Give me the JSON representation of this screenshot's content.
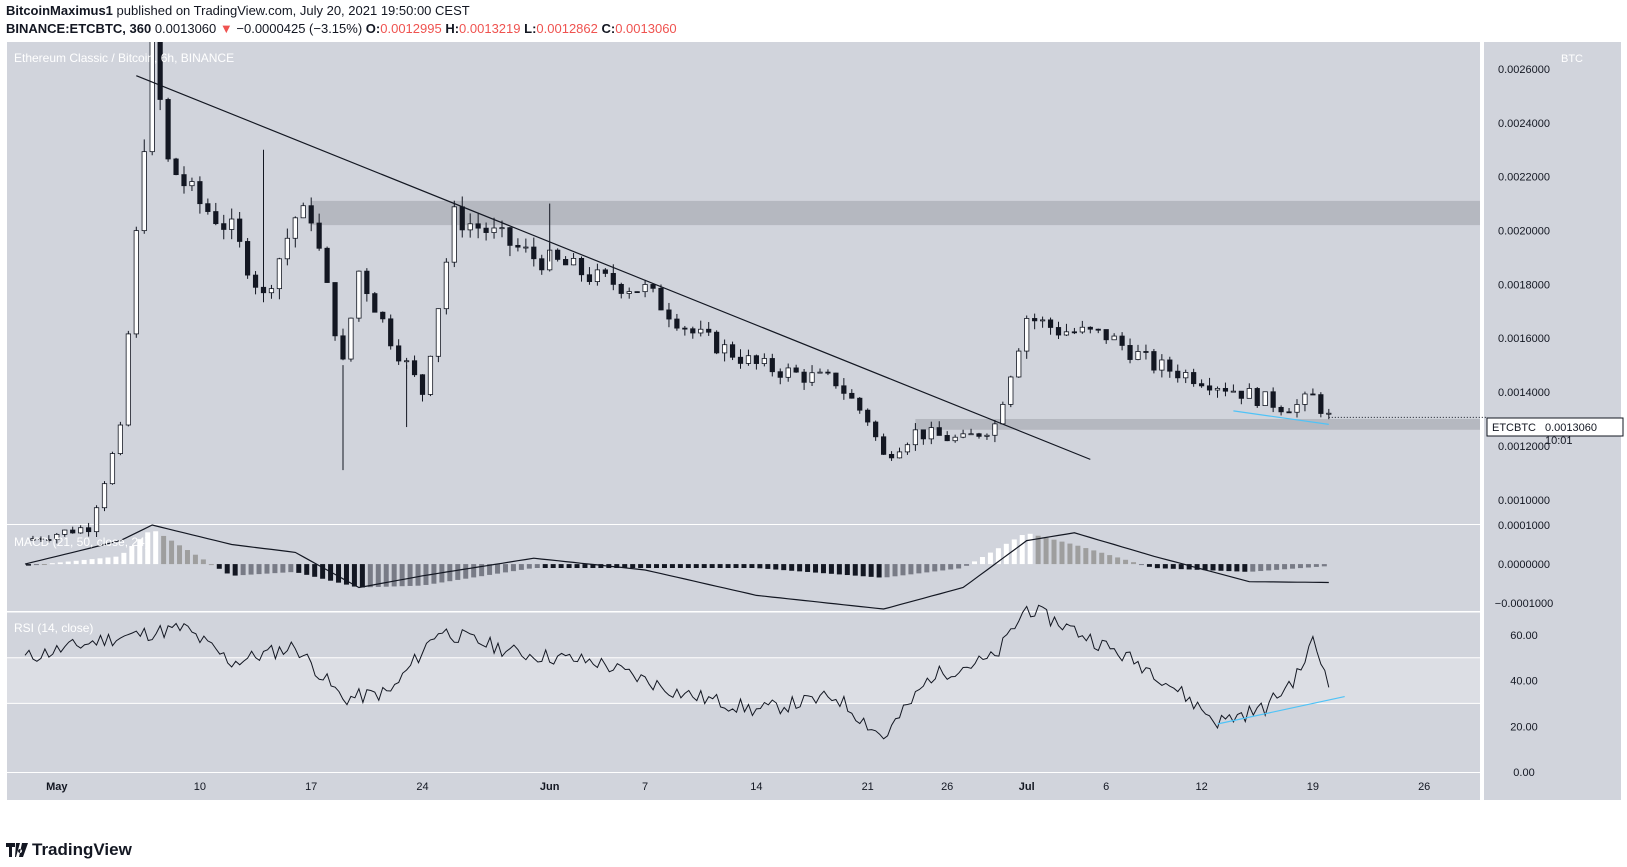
{
  "header": {
    "author": "BitcoinMaximus1",
    "published_text": "published on TradingView.com, July 20, 2021 19:50:00 CEST",
    "symbol": "BINANCE:ETCBTC, 360",
    "last": "0.0013060",
    "change_arrow": "▼",
    "change": "−0.0000425 (−3.15%)",
    "o_label": "O:",
    "o": "0.0012995",
    "h_label": "H:",
    "h": "0.0013219",
    "l_label": "L:",
    "l": "0.0012862",
    "c_label": "C:",
    "c": "0.0013060"
  },
  "chart": {
    "title": "Ethereum Classic / Bitcoin, 6h, BINANCE",
    "currency": "BTC",
    "price_tag_symbol": "ETCBTC",
    "price_tag_value": "0.0013060",
    "price_tag_countdown": "10:01",
    "macd_label": "MACD (21, 50, close, 24)",
    "rsi_label": "RSI (14, close)",
    "x_ticks": [
      "May",
      "10",
      "17",
      "24",
      "Jun",
      "7",
      "14",
      "21",
      "26",
      "Jul",
      "6",
      "12",
      "19",
      "26"
    ],
    "price_ticks": [
      "0.0026000",
      "0.0024000",
      "0.0022000",
      "0.0020000",
      "0.0018000",
      "0.0016000",
      "0.0014000",
      "0.0012000",
      "0.0010000"
    ],
    "macd_ticks": [
      "0.0001000",
      "0.0000000",
      "−0.0001000"
    ],
    "rsi_ticks": [
      "60.00",
      "40.00",
      "20.00",
      "0.00"
    ]
  },
  "footer": {
    "brand": "TradingView"
  },
  "colors": {
    "pane_bg": "#d1d4dc",
    "rsi_band": "#dcdee4",
    "candle": "#131722",
    "trendline": "#131722",
    "support_line": "#4fc3f7",
    "zone": "#a9acb3",
    "down": "#ef5350"
  },
  "chart_data": [
    {
      "type": "candlestick",
      "title": "Ethereum Classic / Bitcoin, 6h, BINANCE",
      "ylabel": "BTC",
      "ylim": [
        0.00091,
        0.0027
      ],
      "x": [
        "2021-04-29",
        "2021-05-03",
        "2021-05-05",
        "2021-05-07",
        "2021-05-08",
        "2021-05-10",
        "2021-05-12",
        "2021-05-14",
        "2021-05-16",
        "2021-05-17",
        "2021-05-19",
        "2021-05-20",
        "2021-05-22",
        "2021-05-24",
        "2021-05-26",
        "2021-05-28",
        "2021-05-31",
        "2021-06-02",
        "2021-06-04",
        "2021-06-07",
        "2021-06-10",
        "2021-06-14",
        "2021-06-17",
        "2021-06-19",
        "2021-06-21",
        "2021-06-22",
        "2021-06-24",
        "2021-06-27",
        "2021-06-29",
        "2021-07-01",
        "2021-07-03",
        "2021-07-06",
        "2021-07-09",
        "2021-07-12",
        "2021-07-14",
        "2021-07-17",
        "2021-07-18",
        "2021-07-19",
        "2021-07-20"
      ],
      "close": [
        0.00085,
        0.0009,
        0.00125,
        0.0027,
        0.00225,
        0.0021,
        0.002,
        0.00175,
        0.00205,
        0.00206,
        0.0015,
        0.00185,
        0.0016,
        0.0014,
        0.00205,
        0.002,
        0.0019,
        0.00187,
        0.00182,
        0.00178,
        0.00162,
        0.0015,
        0.00146,
        0.00144,
        0.0013,
        0.00116,
        0.00125,
        0.00122,
        0.00128,
        0.00168,
        0.00163,
        0.00161,
        0.0015,
        0.00145,
        0.00141,
        0.00135,
        0.00135,
        0.00138,
        0.001306
      ],
      "annotations": {
        "resistance_zone": [
          0.00202,
          0.00211
        ],
        "support_zone": [
          0.00126,
          0.0013
        ],
        "descending_trendline": [
          [
            "2021-05-06",
            0.002575
          ],
          [
            "2021-07-05",
            0.00115
          ]
        ],
        "last_price": 0.001306
      },
      "y_ticks": [
        0.0026,
        0.0024,
        0.0022,
        0.002,
        0.0018,
        0.0016,
        0.0014,
        0.0012,
        0.001
      ]
    },
    {
      "type": "bar",
      "title": "MACD (21, 50, close, 24)",
      "ylim": [
        -0.00012,
        0.0001
      ],
      "x": [
        "2021-04-29",
        "2021-05-05",
        "2021-05-07",
        "2021-05-12",
        "2021-05-16",
        "2021-05-20",
        "2021-05-24",
        "2021-05-31",
        "2021-06-07",
        "2021-06-14",
        "2021-06-22",
        "2021-06-27",
        "2021-07-01",
        "2021-07-04",
        "2021-07-09",
        "2021-07-15",
        "2021-07-20"
      ],
      "histogram": [
        -5e-06,
        2e-05,
        9e-05,
        -3e-05,
        -2e-05,
        -6e-05,
        -5.5e-05,
        -1e-05,
        -1e-05,
        -1e-05,
        -3.5e-05,
        -1e-05,
        8e-05,
        5e-05,
        -1e-05,
        -2e-05,
        -5e-06
      ],
      "macd_line": [
        0,
        6e-05,
        0.0001,
        5e-05,
        3e-05,
        -6e-05,
        -3e-05,
        1.5e-05,
        -1.5e-05,
        -8e-05,
        -0.000115,
        -6e-05,
        6e-05,
        8e-05,
        2e-05,
        -4.5e-05,
        -4.7e-05
      ],
      "y_ticks": [
        0.0001,
        0,
        -0.0001
      ]
    },
    {
      "type": "line",
      "title": "RSI (14, close)",
      "ylim": [
        0,
        70
      ],
      "x": [
        "2021-04-29",
        "2021-05-04",
        "2021-05-09",
        "2021-05-12",
        "2021-05-16",
        "2021-05-19",
        "2021-05-22",
        "2021-05-25",
        "2021-05-30",
        "2021-06-04",
        "2021-06-09",
        "2021-06-14",
        "2021-06-19",
        "2021-06-22",
        "2021-06-25",
        "2021-06-29",
        "2021-07-01",
        "2021-07-04",
        "2021-07-09",
        "2021-07-13",
        "2021-07-16",
        "2021-07-18",
        "2021-07-19",
        "2021-07-20"
      ],
      "values": [
        50,
        58,
        63,
        48,
        55,
        32,
        35,
        62,
        52,
        48,
        35,
        27,
        33,
        15,
        42,
        50,
        72,
        62,
        44,
        22,
        28,
        42,
        57,
        40
      ],
      "bands": [
        30,
        50
      ],
      "trendline": [
        [
          "2021-07-13",
          21
        ],
        [
          "2021-07-21",
          33
        ]
      ],
      "y_ticks": [
        60,
        40,
        20,
        0
      ]
    }
  ]
}
